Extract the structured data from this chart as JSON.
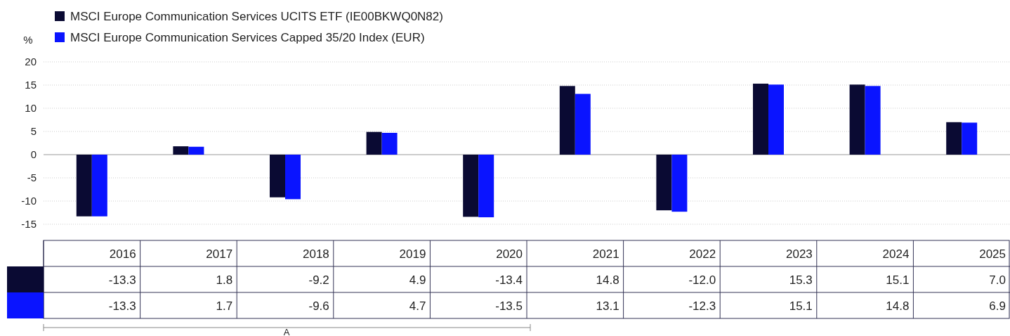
{
  "chart_data": {
    "type": "bar",
    "ylabel": "%",
    "categories": [
      "2016",
      "2017",
      "2018",
      "2019",
      "2020",
      "2021",
      "2022",
      "2023",
      "2024",
      "2025"
    ],
    "series": [
      {
        "name": "MSCI Europe Communication Services UCITS ETF (IE00BKWQ0N82)",
        "color": "#0a0a33",
        "values": [
          -13.3,
          1.8,
          -9.2,
          4.9,
          -13.4,
          14.8,
          -12.0,
          15.3,
          15.1,
          7.0
        ],
        "value_labels": [
          "-13.3",
          "1.8",
          "-9.2",
          "4.9",
          "-13.4",
          "14.8",
          "-12.0",
          "15.3",
          "15.1",
          "7.0"
        ]
      },
      {
        "name": "MSCI Europe Communication Services Capped 35/20 Index (EUR)",
        "color": "#0a14ff",
        "values": [
          -13.3,
          1.7,
          -9.6,
          4.7,
          -13.5,
          13.1,
          -12.3,
          15.1,
          14.8,
          6.9
        ],
        "value_labels": [
          "-13.3",
          "1.7",
          "-9.6",
          "4.7",
          "-13.5",
          "13.1",
          "-12.3",
          "15.1",
          "14.8",
          "6.9"
        ]
      }
    ],
    "ylim": [
      -15,
      20
    ],
    "yticks": [
      -15,
      -10,
      -5,
      0,
      5,
      10,
      15,
      20
    ],
    "grid": "y",
    "legend": "top left",
    "annotations": [
      "A"
    ]
  }
}
